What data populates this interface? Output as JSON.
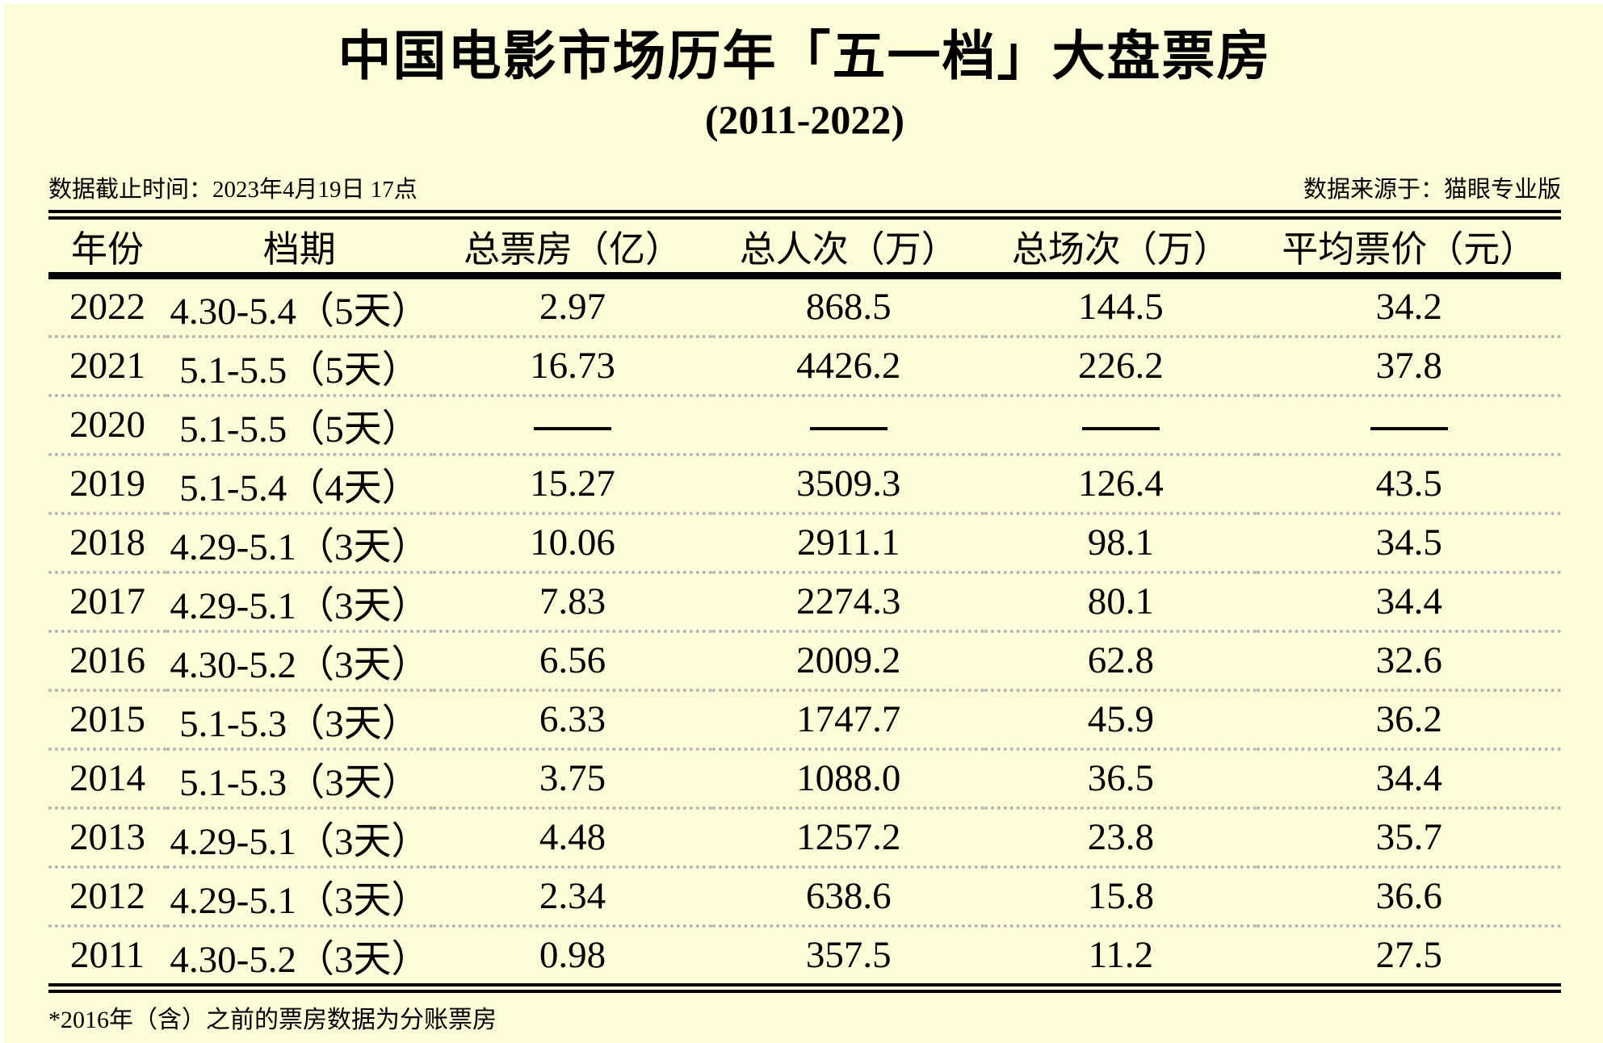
{
  "title": "中国电影市场历年「五一档」大盘票房",
  "subtitle": "(2011-2022)",
  "meta": {
    "cutoff": "数据截止时间：2023年4月19日 17点",
    "source": "数据来源于：猫眼专业版"
  },
  "footnote": "*2016年（含）之前的票房数据为分账票房",
  "colors": {
    "background": "#fcfcd9",
    "rule": "#000000",
    "row_divider": "#b5b5b5"
  },
  "chart_data": {
    "type": "table",
    "title": "中国电影市场历年「五一档」大盘票房 (2011-2022)",
    "columns": [
      "年份",
      "档期",
      "总票房（亿）",
      "总人次（万）",
      "总场次（万）",
      "平均票价（元）"
    ],
    "missing_value_marker": "—",
    "rows": [
      [
        "2022",
        "4.30-5.4（5天）",
        "2.97",
        "868.5",
        "144.5",
        "34.2"
      ],
      [
        "2021",
        "5.1-5.5（5天）",
        "16.73",
        "4426.2",
        "226.2",
        "37.8"
      ],
      [
        "2020",
        "5.1-5.5（5天）",
        "—",
        "—",
        "—",
        "—"
      ],
      [
        "2019",
        "5.1-5.4（4天）",
        "15.27",
        "3509.3",
        "126.4",
        "43.5"
      ],
      [
        "2018",
        "4.29-5.1（3天）",
        "10.06",
        "2911.1",
        "98.1",
        "34.5"
      ],
      [
        "2017",
        "4.29-5.1（3天）",
        "7.83",
        "2274.3",
        "80.1",
        "34.4"
      ],
      [
        "2016",
        "4.30-5.2（3天）",
        "6.56",
        "2009.2",
        "62.8",
        "32.6"
      ],
      [
        "2015",
        "5.1-5.3（3天）",
        "6.33",
        "1747.7",
        "45.9",
        "36.2"
      ],
      [
        "2014",
        "5.1-5.3（3天）",
        "3.75",
        "1088.0",
        "36.5",
        "34.4"
      ],
      [
        "2013",
        "4.29-5.1（3天）",
        "4.48",
        "1257.2",
        "23.8",
        "35.7"
      ],
      [
        "2012",
        "4.29-5.1（3天）",
        "2.34",
        "638.6",
        "15.8",
        "36.6"
      ],
      [
        "2011",
        "4.30-5.2（3天）",
        "0.98",
        "357.5",
        "11.2",
        "27.5"
      ]
    ]
  }
}
